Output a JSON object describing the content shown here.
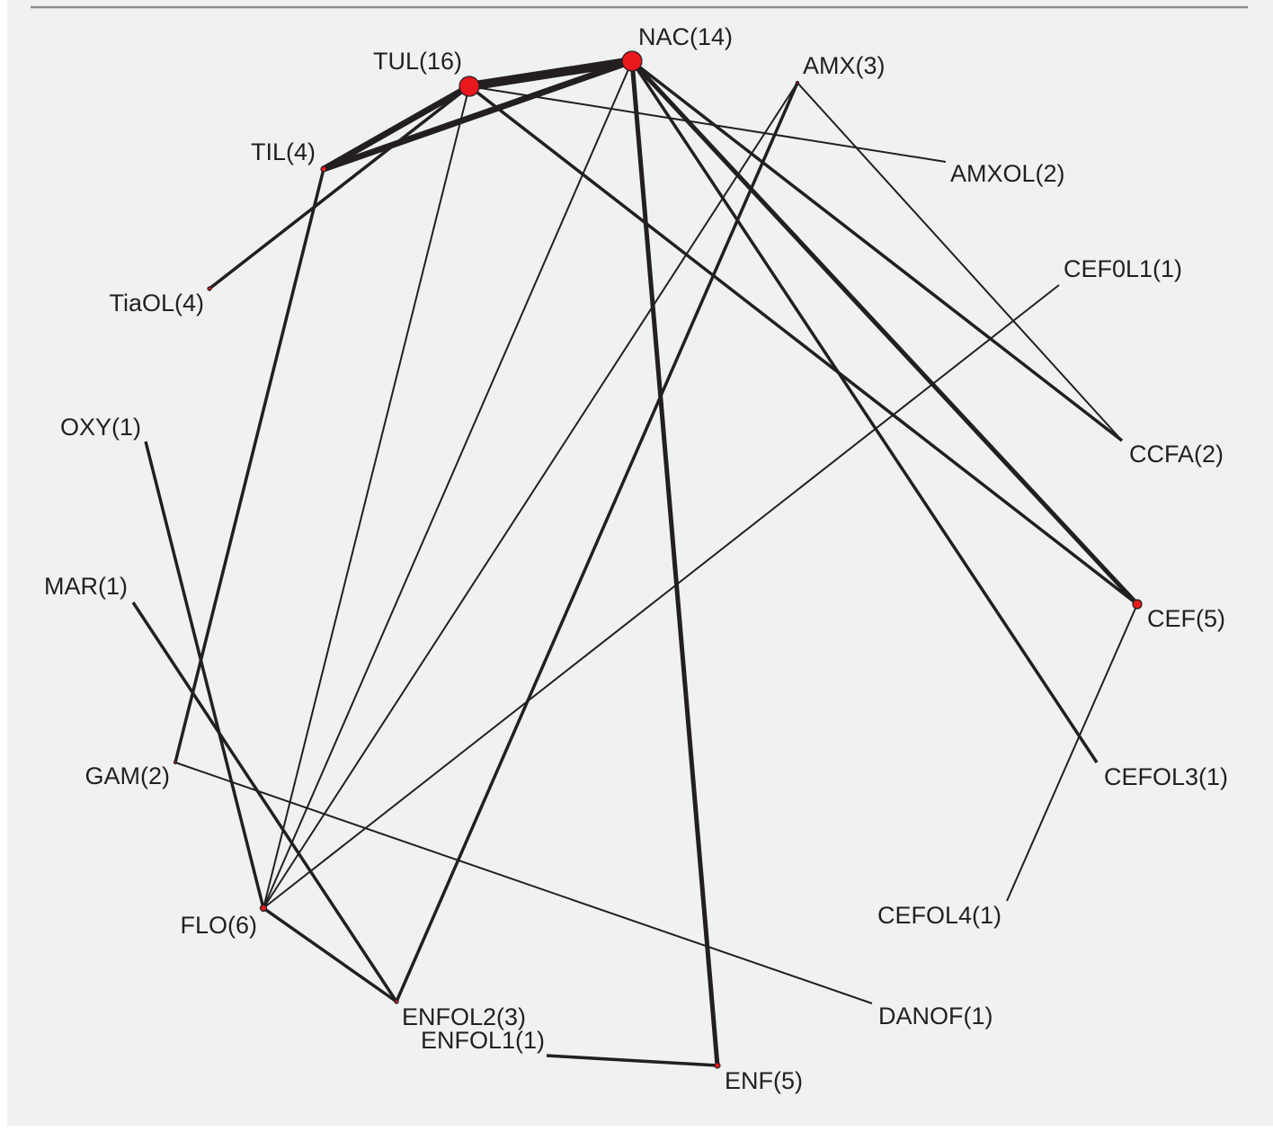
{
  "network": {
    "nodes": [
      {
        "id": "NAC",
        "label": "NAC(14)",
        "studies": 14
      },
      {
        "id": "TUL",
        "label": "TUL(16)",
        "studies": 16
      },
      {
        "id": "AMX",
        "label": "AMX(3)",
        "studies": 3
      },
      {
        "id": "TIL",
        "label": "TIL(4)",
        "studies": 4
      },
      {
        "id": "AMXOL",
        "label": "AMXOL(2)",
        "studies": 2
      },
      {
        "id": "CEF0L1",
        "label": "CEF0L1(1)",
        "studies": 1
      },
      {
        "id": "TiaOL",
        "label": "TiaOL(4)",
        "studies": 4
      },
      {
        "id": "OXY",
        "label": "OXY(1)",
        "studies": 1
      },
      {
        "id": "CCFA",
        "label": "CCFA(2)",
        "studies": 2
      },
      {
        "id": "MAR",
        "label": "MAR(1)",
        "studies": 1
      },
      {
        "id": "CEF",
        "label": "CEF(5)",
        "studies": 5
      },
      {
        "id": "GAM",
        "label": "GAM(2)",
        "studies": 2
      },
      {
        "id": "CEFOL3",
        "label": "CEFOL3(1)",
        "studies": 1
      },
      {
        "id": "CEFOL4",
        "label": "CEFOL4(1)",
        "studies": 1
      },
      {
        "id": "FLO",
        "label": "FLO(6)",
        "studies": 6
      },
      {
        "id": "ENFOL2",
        "label": "ENFOL2(3)",
        "studies": 3
      },
      {
        "id": "ENFOL1",
        "label": "ENFOL1(1)",
        "studies": 1
      },
      {
        "id": "DANOF",
        "label": "DANOF(1)",
        "studies": 1
      },
      {
        "id": "ENF",
        "label": "ENF(5)",
        "studies": 5
      }
    ],
    "edges": [
      {
        "source": "TUL",
        "target": "NAC",
        "weight": 5
      },
      {
        "source": "TIL",
        "target": "TUL",
        "weight": 4
      },
      {
        "source": "TIL",
        "target": "NAC",
        "weight": 4
      },
      {
        "source": "TUL",
        "target": "TiaOL",
        "weight": 2
      },
      {
        "source": "TUL",
        "target": "AMXOL",
        "weight": 1
      },
      {
        "source": "TUL",
        "target": "CEF",
        "weight": 2
      },
      {
        "source": "TUL",
        "target": "FLO",
        "weight": 1
      },
      {
        "source": "NAC",
        "target": "CCFA",
        "weight": 2
      },
      {
        "source": "NAC",
        "target": "CEF",
        "weight": 3
      },
      {
        "source": "NAC",
        "target": "CEFOL3",
        "weight": 2
      },
      {
        "source": "NAC",
        "target": "ENF",
        "weight": 3
      },
      {
        "source": "NAC",
        "target": "FLO",
        "weight": 1
      },
      {
        "source": "AMX",
        "target": "CCFA",
        "weight": 1
      },
      {
        "source": "AMX",
        "target": "ENFOL2",
        "weight": 2
      },
      {
        "source": "AMX",
        "target": "FLO",
        "weight": 1
      },
      {
        "source": "TIL",
        "target": "GAM",
        "weight": 2
      },
      {
        "source": "CEF0L1",
        "target": "FLO",
        "weight": 1
      },
      {
        "source": "OXY",
        "target": "FLO",
        "weight": 2
      },
      {
        "source": "MAR",
        "target": "ENFOL2",
        "weight": 2
      },
      {
        "source": "CEF",
        "target": "CEFOL4",
        "weight": 1
      },
      {
        "source": "GAM",
        "target": "DANOF",
        "weight": 1
      },
      {
        "source": "FLO",
        "target": "ENFOL2",
        "weight": 2
      },
      {
        "source": "ENFOL1",
        "target": "ENF",
        "weight": 2
      }
    ]
  }
}
